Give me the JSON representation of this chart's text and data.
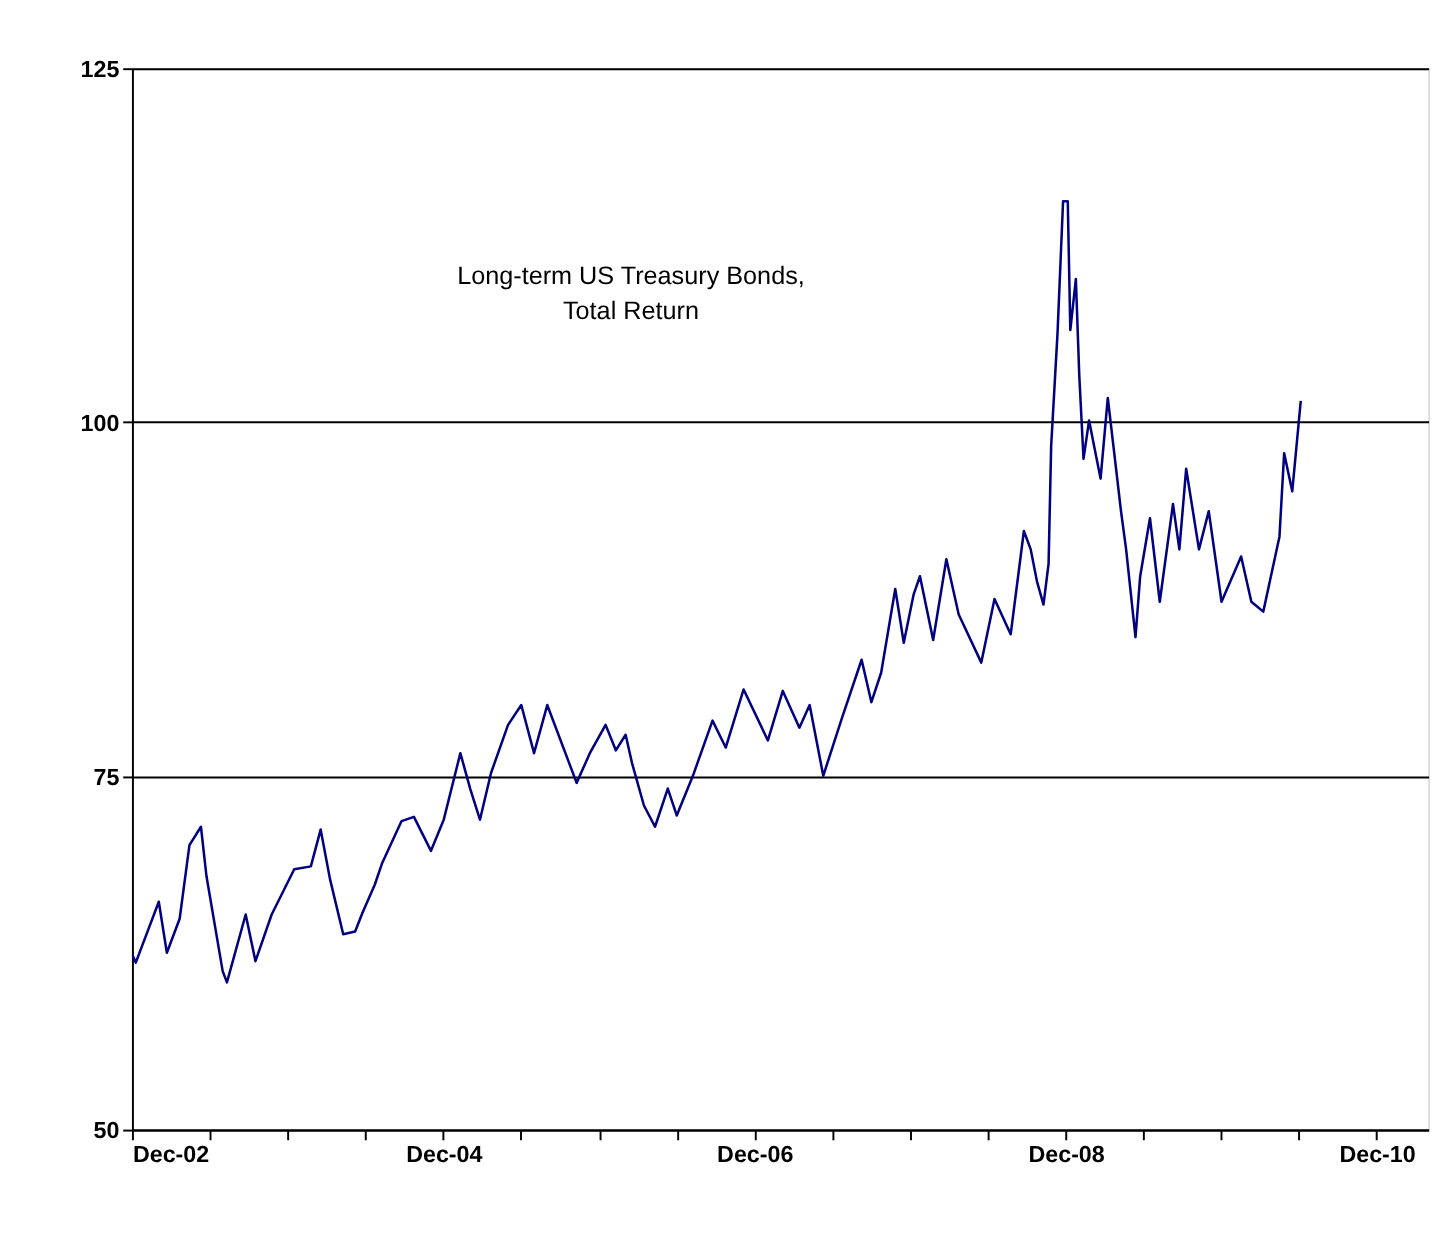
{
  "chart_data": {
    "type": "line",
    "annotations": [
      "Long-term US Treasury Bonds,\nTotal Return"
    ],
    "x": [
      "2002-12-01",
      "2002-12-10",
      "2003-02-02",
      "2003-02-21",
      "2003-03-23",
      "2003-04-15",
      "2003-05-12",
      "2003-05-25",
      "2003-07-02",
      "2003-07-12",
      "2003-08-25",
      "2003-09-17",
      "2003-10-25",
      "2003-12-17",
      "2004-01-25",
      "2004-02-17",
      "2004-03-10",
      "2004-04-10",
      "2004-05-08",
      "2004-05-25",
      "2004-06-23",
      "2004-07-10",
      "2004-08-25",
      "2004-09-23",
      "2004-11-02",
      "2004-12-02",
      "2005-01-10",
      "2005-02-02",
      "2005-02-25",
      "2005-03-23",
      "2005-05-02",
      "2005-06-02",
      "2005-07-02",
      "2005-08-02",
      "2005-10-10",
      "2005-11-10",
      "2005-12-17",
      "2006-01-10",
      "2006-02-02",
      "2006-02-17",
      "2006-03-17",
      "2006-04-12",
      "2006-05-12",
      "2006-06-02",
      "2006-07-10",
      "2006-08-25",
      "2006-09-25",
      "2006-11-06",
      "2007-01-02",
      "2007-02-06",
      "2007-03-17",
      "2007-04-10",
      "2007-05-12",
      "2007-06-25",
      "2007-08-10",
      "2007-09-02",
      "2007-09-25",
      "2007-10-28",
      "2007-11-17",
      "2007-12-10",
      "2007-12-25",
      "2008-01-25",
      "2008-02-25",
      "2008-03-25",
      "2008-05-17",
      "2008-06-17",
      "2008-07-25",
      "2008-08-25",
      "2008-09-10",
      "2008-09-25",
      "2008-10-10",
      "2008-10-22",
      "2008-10-28",
      "2008-11-12",
      "2008-11-25",
      "2008-12-06",
      "2008-12-12",
      "2008-12-25",
      "2009-01-02",
      "2009-01-12",
      "2009-01-25",
      "2009-02-21",
      "2009-03-10",
      "2009-04-10",
      "2009-04-22",
      "2009-05-14",
      "2009-05-25",
      "2009-06-17",
      "2009-07-10",
      "2009-08-10",
      "2009-08-25",
      "2009-09-10",
      "2009-10-10",
      "2009-11-02",
      "2009-12-02",
      "2010-01-17",
      "2010-02-10",
      "2010-03-10",
      "2010-04-17",
      "2010-04-28",
      "2010-05-17",
      "2010-06-06"
    ],
    "series": [
      {
        "color": "#000080",
        "values": [
          62.4,
          61.8,
          66.1,
          62.5,
          64.9,
          70.1,
          71.4,
          67.9,
          61.2,
          60.4,
          65.2,
          61.9,
          65.2,
          68.4,
          68.6,
          71.2,
          67.7,
          63.8,
          64.0,
          65.3,
          67.3,
          68.8,
          71.8,
          72.1,
          69.7,
          71.9,
          76.6,
          74.1,
          71.9,
          75.2,
          78.6,
          80.0,
          76.6,
          80.0,
          74.5,
          76.6,
          78.6,
          76.8,
          77.9,
          75.9,
          72.9,
          71.4,
          74.1,
          72.2,
          75.0,
          78.9,
          77.0,
          81.1,
          77.5,
          81.0,
          78.4,
          80.0,
          75.0,
          79.1,
          83.2,
          80.2,
          82.3,
          88.2,
          84.4,
          87.8,
          89.1,
          84.6,
          90.3,
          86.4,
          83.0,
          87.5,
          85.0,
          92.3,
          91.0,
          88.7,
          87.1,
          90.0,
          98.3,
          106.3,
          115.6,
          115.6,
          106.5,
          110.1,
          103.3,
          97.4,
          100.1,
          96.0,
          101.7,
          93.7,
          91.0,
          84.8,
          89.1,
          93.2,
          87.3,
          94.2,
          91.0,
          96.7,
          91.0,
          93.7,
          87.3,
          90.5,
          87.3,
          86.6,
          91.9,
          97.8,
          95.1,
          101.5
        ]
      }
    ],
    "xlim": [
      "2002-12-01",
      "2011-04-01"
    ],
    "xticks": [
      {
        "value": "2002-12-01",
        "label": "Dec-02"
      },
      {
        "value": "2003-06-01",
        "label": null
      },
      {
        "value": "2003-12-01",
        "label": null
      },
      {
        "value": "2004-06-01",
        "label": null
      },
      {
        "value": "2004-12-01",
        "label": "Dec-04"
      },
      {
        "value": "2005-06-01",
        "label": null
      },
      {
        "value": "2005-12-01",
        "label": null
      },
      {
        "value": "2006-06-01",
        "label": null
      },
      {
        "value": "2006-12-01",
        "label": "Dec-06"
      },
      {
        "value": "2007-06-01",
        "label": null
      },
      {
        "value": "2007-12-01",
        "label": null
      },
      {
        "value": "2008-06-01",
        "label": null
      },
      {
        "value": "2008-12-01",
        "label": "Dec-08"
      },
      {
        "value": "2009-06-01",
        "label": null
      },
      {
        "value": "2009-12-01",
        "label": null
      },
      {
        "value": "2010-06-01",
        "label": null
      },
      {
        "value": "2010-12-01",
        "label": "Dec-10"
      }
    ],
    "ylim": [
      50,
      125
    ],
    "yticks": [
      50,
      75,
      100,
      125
    ],
    "grid": "y",
    "marker": "none",
    "line_style": "solid"
  }
}
